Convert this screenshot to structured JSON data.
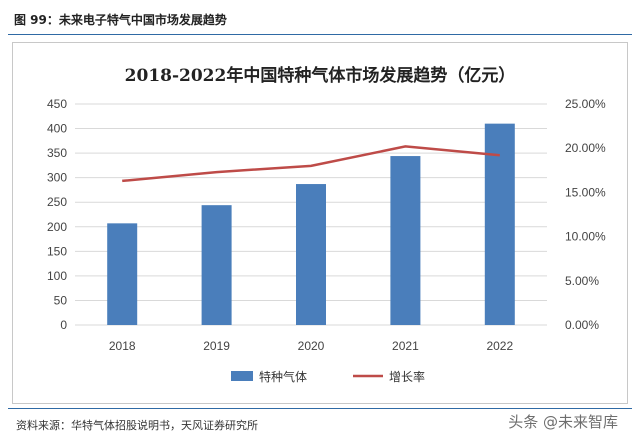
{
  "caption": "图 99：未来电子特气中国市场发展趋势",
  "source": "资料来源：华特气体招股说明书，天风证券研究所",
  "watermark": "头条 @未来智库",
  "chart_data": {
    "type": "bar",
    "title": "2018-2022年中国特种气体市场发展趋势（亿元）",
    "categories": [
      "2018",
      "2019",
      "2020",
      "2021",
      "2022"
    ],
    "series": [
      {
        "name": "特种气体",
        "type": "bar",
        "axis": "left",
        "color": "#4a7ebb",
        "values": [
          207,
          244,
          287,
          344,
          410
        ]
      },
      {
        "name": "增长率",
        "type": "line",
        "axis": "right",
        "color": "#be4b48",
        "values": [
          0.163,
          0.173,
          0.18,
          0.202,
          0.192
        ]
      }
    ],
    "y_left": {
      "min": 0,
      "max": 450,
      "step": 50,
      "ticks": [
        "0",
        "50",
        "100",
        "150",
        "200",
        "250",
        "300",
        "350",
        "400",
        "450"
      ]
    },
    "y_right": {
      "min": 0,
      "max": 0.25,
      "step": 0.05,
      "ticks": [
        "0.00%",
        "5.00%",
        "10.00%",
        "15.00%",
        "20.00%",
        "25.00%"
      ]
    },
    "grid": true,
    "legend_position": "bottom"
  }
}
